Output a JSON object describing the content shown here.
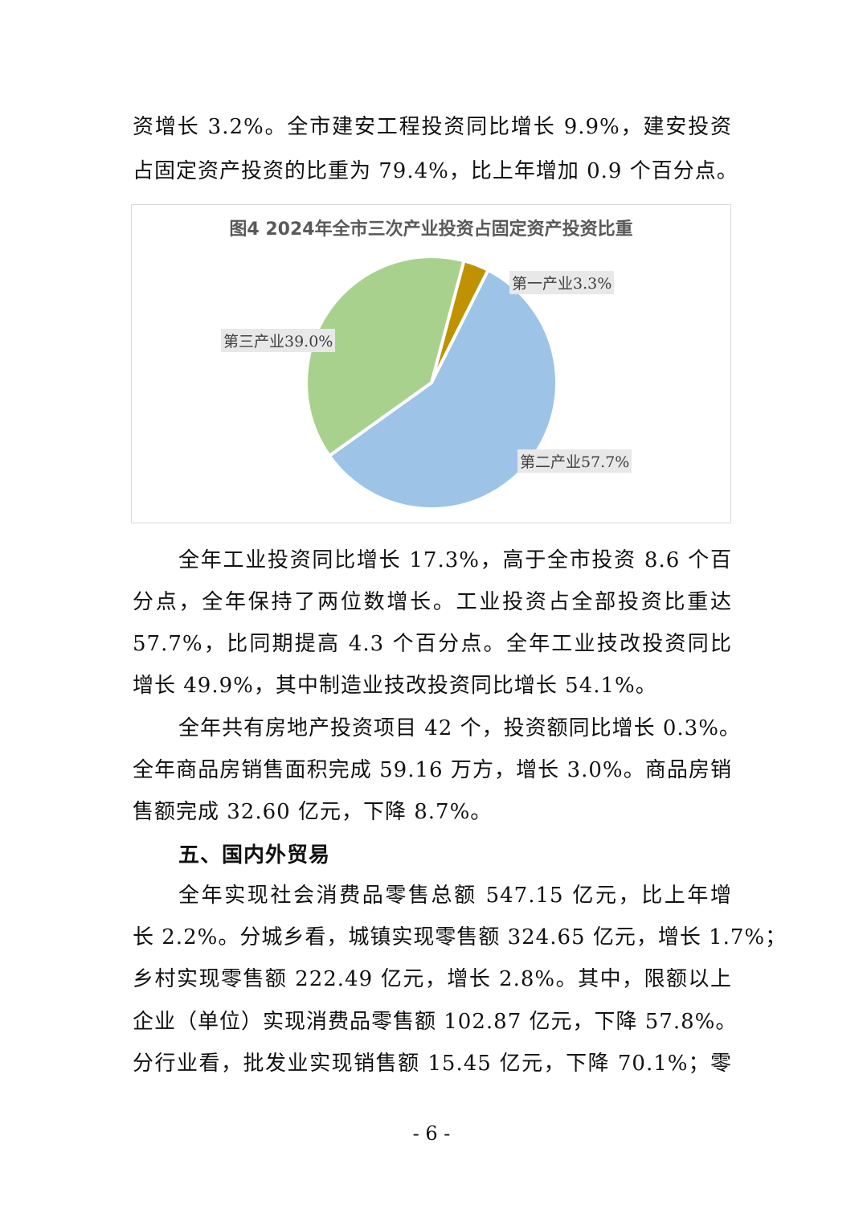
{
  "paragraphs_top": [
    {
      "lines": [
        "资增长 3.2%。全市建安工程投资同比增长 9.9%，建安投资",
        "占固定资产投资的比重为 79.4%，比上年增加 0.9 个百分点。"
      ]
    }
  ],
  "chart_data": {
    "type": "pie",
    "title": "图4  2024年全市三次产业投资占固定资产投资比重",
    "categories": [
      "第一产业",
      "第二产业",
      "第三产业"
    ],
    "values": [
      3.3,
      57.7,
      39.0
    ],
    "unit": "%",
    "labels": [
      "第一产业3.3%",
      "第二产业57.7%",
      "第三产业39.0%"
    ],
    "colors": [
      "#C09200",
      "#9DC3E6",
      "#A9D18E"
    ],
    "legend": "none"
  },
  "paragraphs_mid": [
    {
      "lines": [
        "全年工业投资同比增长 17.3%，高于全市投资 8.6 个百",
        "分点，全年保持了两位数增长。工业投资占全部投资比重达",
        "57.7%，比同期提高 4.3 个百分点。全年工业技改投资同比",
        "增长 49.9%，其中制造业技改投资同比增长 54.1%。"
      ]
    },
    {
      "lines": [
        "全年共有房地产投资项目 42 个，投资额同比增长 0.3%。",
        "全年商品房销售面积完成 59.16 万方，增长 3.0%。商品房销",
        "售额完成 32.60 亿元，下降 8.7%。"
      ]
    }
  ],
  "section_heading": "五、国内外贸易",
  "paragraphs_bottom": [
    {
      "lines": [
        "全年实现社会消费品零售总额 547.15 亿元，比上年增",
        "长 2.2%。分城乡看，城镇实现零售额 324.65 亿元，增长 1.7%；",
        "乡村实现零售额 222.49 亿元，增长 2.8%。其中，限额以上",
        "企业（单位）实现消费品零售额 102.87 亿元，下降 57.8%。",
        "分行业看，批发业实现销售额 15.45 亿元，下降 70.1%；零"
      ]
    }
  ],
  "page_number": "- 6 -"
}
